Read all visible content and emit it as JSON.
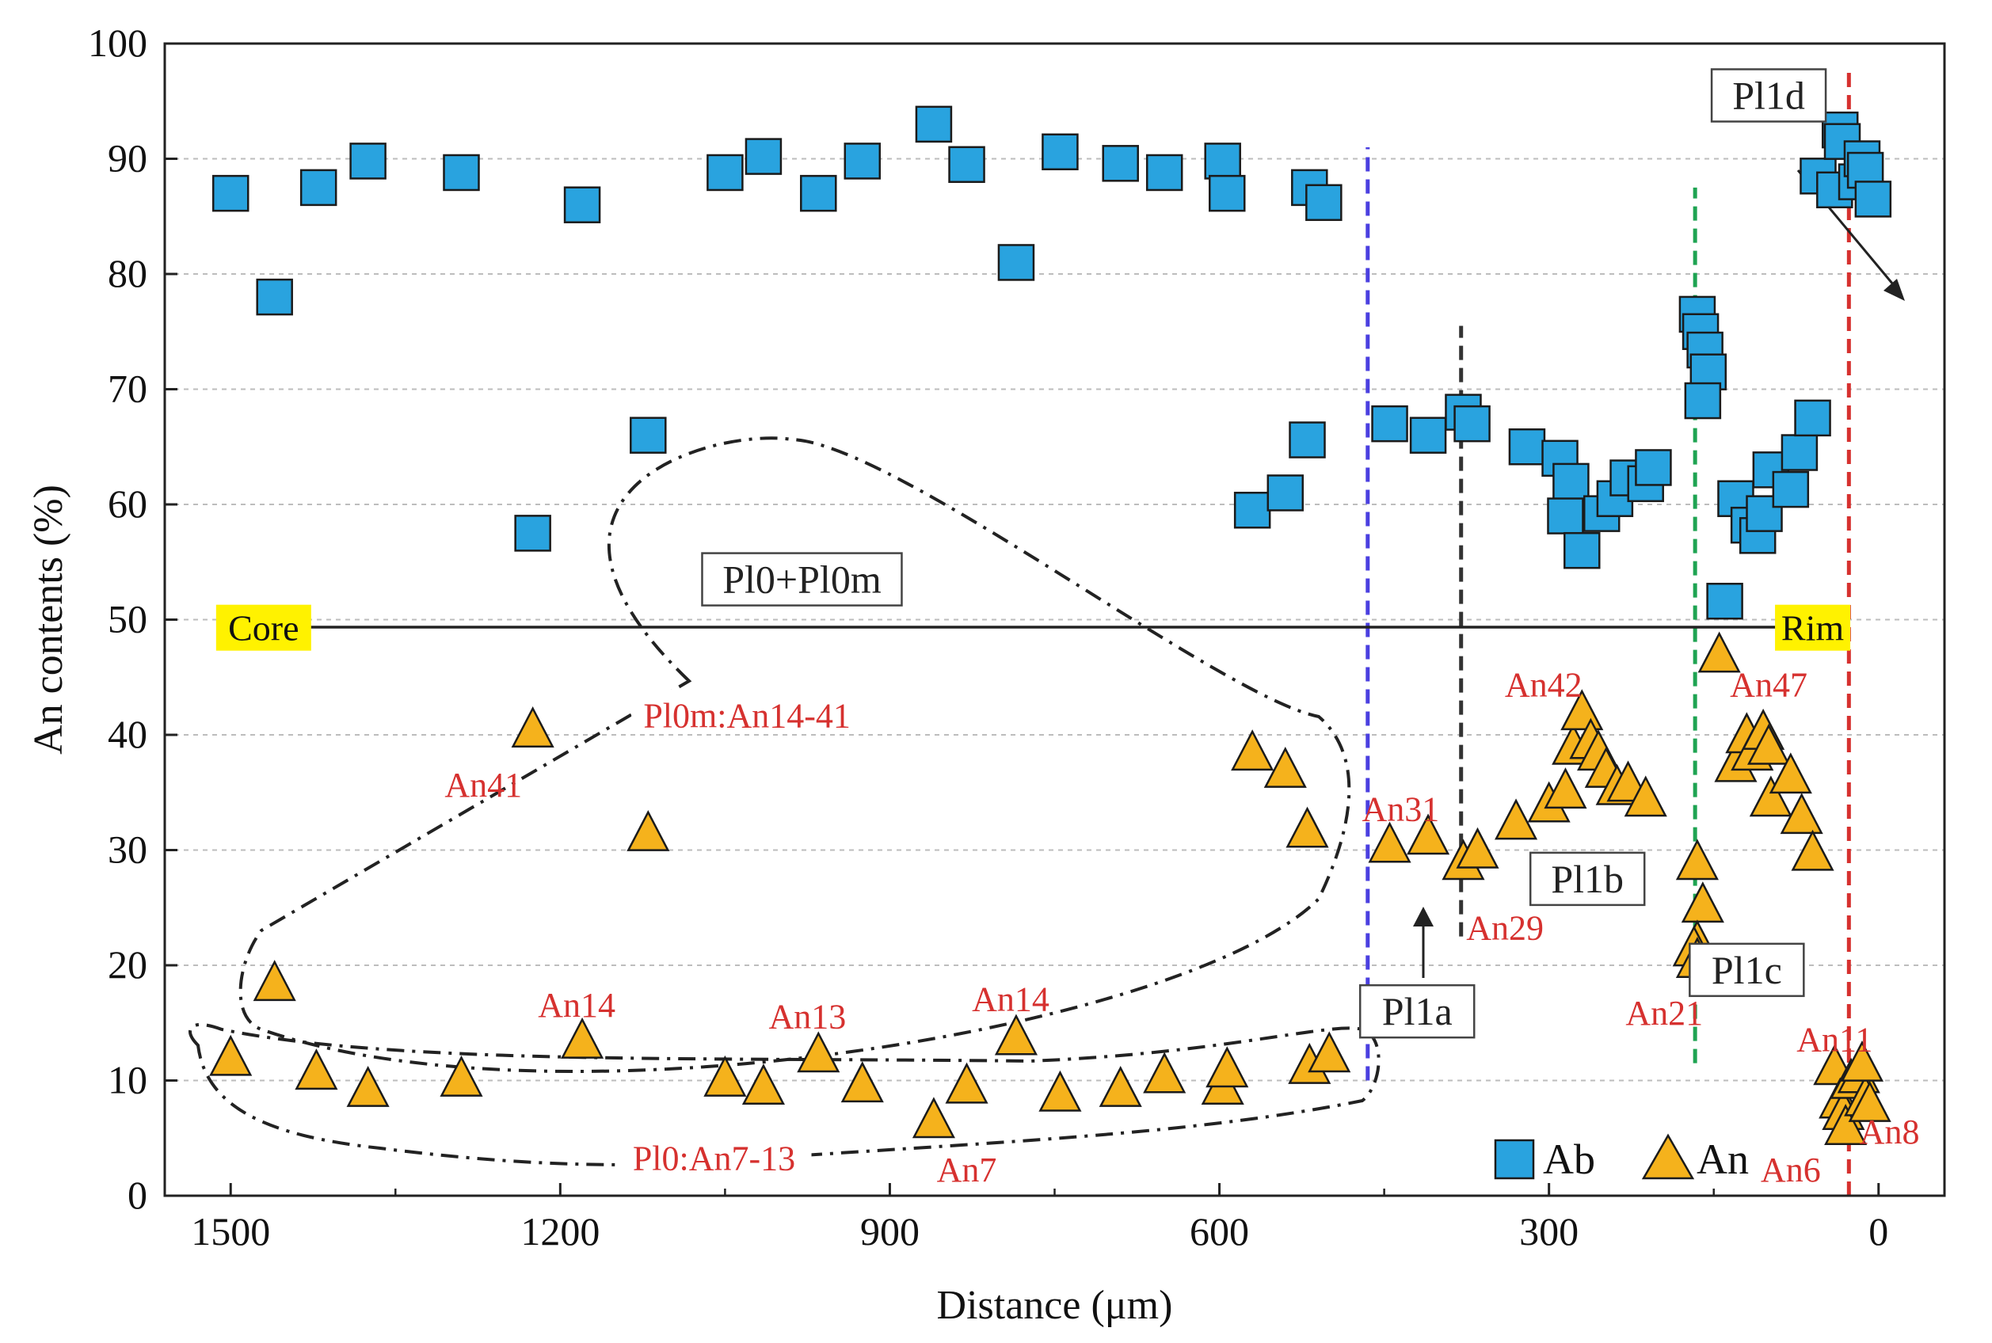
{
  "chart_data": {
    "type": "scatter",
    "title": "",
    "xlabel": "Distance (μm)",
    "ylabel": "An contents (%)",
    "xlim": [
      1560,
      -60
    ],
    "ylim": [
      0,
      100
    ],
    "x_ticks": [
      1500,
      1200,
      900,
      600,
      300,
      0
    ],
    "y_ticks": [
      0,
      10,
      20,
      30,
      40,
      50,
      60,
      70,
      80,
      90,
      100
    ],
    "grid": "horizontal dashed",
    "legend_position": "bottom-right",
    "series": [
      {
        "name": "Ab",
        "marker": "square",
        "color": "#29a3df",
        "points": [
          [
            1500,
            87
          ],
          [
            1460,
            78
          ],
          [
            1420,
            87.5
          ],
          [
            1375,
            89.8
          ],
          [
            1290,
            88.8
          ],
          [
            1225,
            57.5
          ],
          [
            1180,
            86
          ],
          [
            1120,
            66
          ],
          [
            1050,
            88.8
          ],
          [
            1015,
            90.2
          ],
          [
            965,
            87
          ],
          [
            925,
            89.8
          ],
          [
            860,
            93
          ],
          [
            830,
            89.5
          ],
          [
            785,
            81
          ],
          [
            745,
            90.6
          ],
          [
            690,
            89.6
          ],
          [
            650,
            88.8
          ],
          [
            597,
            89.8
          ],
          [
            593,
            87
          ],
          [
            570,
            59.5
          ],
          [
            540,
            61
          ],
          [
            520,
            65.6
          ],
          [
            518,
            87.5
          ],
          [
            505,
            86.2
          ],
          [
            445,
            67
          ],
          [
            410,
            66
          ],
          [
            378,
            68
          ],
          [
            370,
            67
          ],
          [
            320,
            65
          ],
          [
            290,
            64
          ],
          [
            280,
            62
          ],
          [
            285,
            59
          ],
          [
            270,
            56
          ],
          [
            252,
            59.2
          ],
          [
            240,
            60.5
          ],
          [
            228,
            62.3
          ],
          [
            212,
            61.8
          ],
          [
            205,
            63.2
          ],
          [
            165,
            76.5
          ],
          [
            162,
            75
          ],
          [
            158,
            73.4
          ],
          [
            155,
            71.5
          ],
          [
            160,
            69
          ],
          [
            140,
            51.6
          ],
          [
            130,
            60.5
          ],
          [
            118,
            58.2
          ],
          [
            110,
            57.3
          ],
          [
            104,
            59.2
          ],
          [
            98,
            63
          ],
          [
            80,
            61.3
          ],
          [
            72,
            64.5
          ],
          [
            60,
            67.5
          ],
          [
            55,
            88.5
          ],
          [
            40,
            87.3
          ],
          [
            35,
            92.5
          ],
          [
            33,
            91.5
          ],
          [
            20,
            88
          ],
          [
            15,
            90
          ],
          [
            12,
            89
          ],
          [
            5,
            86.5
          ]
        ]
      },
      {
        "name": "An",
        "marker": "triangle",
        "color": "#f5b21c",
        "points": [
          [
            1500,
            12
          ],
          [
            1460,
            18.5
          ],
          [
            1422,
            10.8
          ],
          [
            1375,
            9.3
          ],
          [
            1290,
            10.2
          ],
          [
            1225,
            40.5
          ],
          [
            1180,
            13.5
          ],
          [
            1120,
            31.5
          ],
          [
            1050,
            10.2
          ],
          [
            1015,
            9.5
          ],
          [
            965,
            12.3
          ],
          [
            925,
            9.7
          ],
          [
            860,
            6.6
          ],
          [
            830,
            9.6
          ],
          [
            785,
            13.8
          ],
          [
            745,
            8.9
          ],
          [
            690,
            9.3
          ],
          [
            650,
            10.5
          ],
          [
            597,
            9.5
          ],
          [
            593,
            11
          ],
          [
            570,
            38.5
          ],
          [
            540,
            37
          ],
          [
            520,
            31.8
          ],
          [
            518,
            11.3
          ],
          [
            500,
            12.3
          ],
          [
            445,
            30.5
          ],
          [
            410,
            31.2
          ],
          [
            378,
            29
          ],
          [
            365,
            30
          ],
          [
            330,
            32.5
          ],
          [
            300,
            34
          ],
          [
            285,
            35.2
          ],
          [
            278,
            39
          ],
          [
            270,
            42
          ],
          [
            262,
            39.5
          ],
          [
            255,
            38.5
          ],
          [
            248,
            37
          ],
          [
            238,
            35.5
          ],
          [
            228,
            35.8
          ],
          [
            212,
            34.5
          ],
          [
            165,
            29
          ],
          [
            160,
            25.3
          ],
          [
            165,
            22
          ],
          [
            168,
            21.5
          ],
          [
            165,
            20.5
          ],
          [
            145,
            47
          ],
          [
            130,
            37.5
          ],
          [
            120,
            40
          ],
          [
            115,
            38.5
          ],
          [
            105,
            40.3
          ],
          [
            100,
            39
          ],
          [
            98,
            34.5
          ],
          [
            80,
            36.5
          ],
          [
            70,
            33
          ],
          [
            60,
            29.8
          ],
          [
            40,
            11.2
          ],
          [
            35,
            8.3
          ],
          [
            32,
            7.3
          ],
          [
            30,
            6
          ],
          [
            25,
            10
          ],
          [
            18,
            10.5
          ],
          [
            12,
            8.5
          ],
          [
            8,
            8
          ],
          [
            15,
            11.5
          ]
        ]
      }
    ],
    "vertical_lines": [
      {
        "x": 465,
        "color": "#4a3fe0",
        "y_from": 10,
        "y_to": 91
      },
      {
        "x": 380,
        "color": "#333333",
        "y_from": 22.5,
        "y_to": 75.5
      },
      {
        "x": 167,
        "color": "#1ea352",
        "y_from": 11.5,
        "y_to": 87.5
      },
      {
        "x": 27,
        "color": "#d6312f",
        "y_from": 0,
        "y_to": 98
      }
    ],
    "core_rim_arrow": {
      "from_label": "Core",
      "to_label": "Rim",
      "y": 49.3,
      "x_from": 1470,
      "x_to": 60
    },
    "box_labels": [
      {
        "text": "Pl0+Pl0m",
        "x": 980,
        "y": 53.5
      },
      {
        "text": "Pl1a",
        "x": 420,
        "y": 16
      },
      {
        "text": "Pl1b",
        "x": 265,
        "y": 27.5
      },
      {
        "text": "Pl1c",
        "x": 120,
        "y": 19.6
      },
      {
        "text": "Pl1d",
        "x": 100,
        "y": 95.5
      }
    ],
    "annotations": [
      {
        "text": "Pl0m:An14-41",
        "x": 1030,
        "y": 41.6
      },
      {
        "text": "Pl0:An7-13",
        "x": 1060,
        "y": 3.2
      },
      {
        "text": "An41",
        "x": 1270,
        "y": 35.6
      },
      {
        "text": "An14",
        "x": 1185,
        "y": 16.5
      },
      {
        "text": "An13",
        "x": 975,
        "y": 15.5
      },
      {
        "text": "An14",
        "x": 790,
        "y": 17
      },
      {
        "text": "An7",
        "x": 830,
        "y": 2.2
      },
      {
        "text": "An31",
        "x": 435,
        "y": 33.5
      },
      {
        "text": "An29",
        "x": 340,
        "y": 23.2
      },
      {
        "text": "An42",
        "x": 305,
        "y": 44.3
      },
      {
        "text": "An47",
        "x": 100,
        "y": 44.3
      },
      {
        "text": "An21",
        "x": 195,
        "y": 15.8
      },
      {
        "text": "An11",
        "x": 40,
        "y": 13.5
      },
      {
        "text": "An8",
        "x": -10,
        "y": 5.5
      },
      {
        "text": "An6",
        "x": 80,
        "y": 2.2
      }
    ]
  }
}
